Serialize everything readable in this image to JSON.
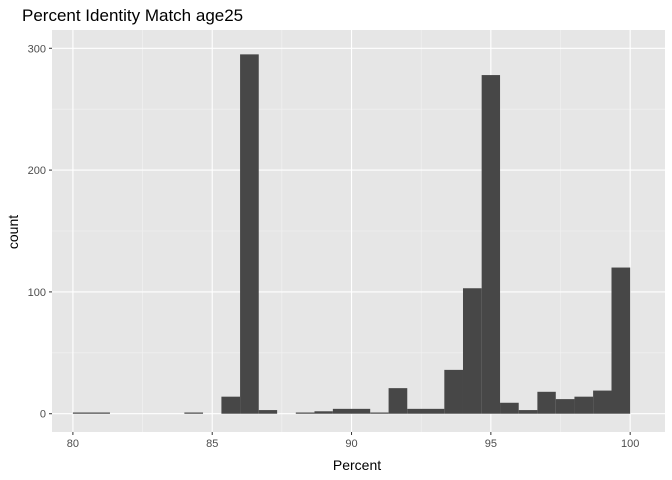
{
  "chart_data": {
    "type": "bar",
    "title": "Percent Identity Match age25",
    "xlabel": "Percent",
    "ylabel": "count",
    "xlim": [
      79.25,
      101.25
    ],
    "ylim": [
      -15,
      315
    ],
    "xticks": [
      80,
      85,
      90,
      95,
      100
    ],
    "yticks": [
      0,
      100,
      200,
      300
    ],
    "grid": true,
    "bar_color": "#474747",
    "panel_color": "#e6e6e6",
    "bins": [
      {
        "x0": 80.0,
        "x1": 81.33,
        "count": 1
      },
      {
        "x0": 84.0,
        "x1": 84.67,
        "count": 1
      },
      {
        "x0": 85.33,
        "x1": 86.0,
        "count": 14
      },
      {
        "x0": 86.0,
        "x1": 86.67,
        "count": 295
      },
      {
        "x0": 86.67,
        "x1": 87.33,
        "count": 3
      },
      {
        "x0": 88.0,
        "x1": 88.67,
        "count": 1
      },
      {
        "x0": 88.67,
        "x1": 89.33,
        "count": 2
      },
      {
        "x0": 89.33,
        "x1": 90.67,
        "count": 4
      },
      {
        "x0": 90.67,
        "x1": 91.33,
        "count": 1
      },
      {
        "x0": 91.33,
        "x1": 92.0,
        "count": 21
      },
      {
        "x0": 92.0,
        "x1": 93.33,
        "count": 4
      },
      {
        "x0": 93.33,
        "x1": 94.0,
        "count": 36
      },
      {
        "x0": 94.0,
        "x1": 94.67,
        "count": 103
      },
      {
        "x0": 94.67,
        "x1": 95.33,
        "count": 278
      },
      {
        "x0": 95.33,
        "x1": 96.0,
        "count": 9
      },
      {
        "x0": 96.0,
        "x1": 96.67,
        "count": 3
      },
      {
        "x0": 96.67,
        "x1": 97.33,
        "count": 18
      },
      {
        "x0": 97.33,
        "x1": 98.0,
        "count": 12
      },
      {
        "x0": 98.0,
        "x1": 98.67,
        "count": 14
      },
      {
        "x0": 98.67,
        "x1": 99.33,
        "count": 19
      },
      {
        "x0": 99.33,
        "x1": 100.0,
        "count": 120
      }
    ]
  }
}
